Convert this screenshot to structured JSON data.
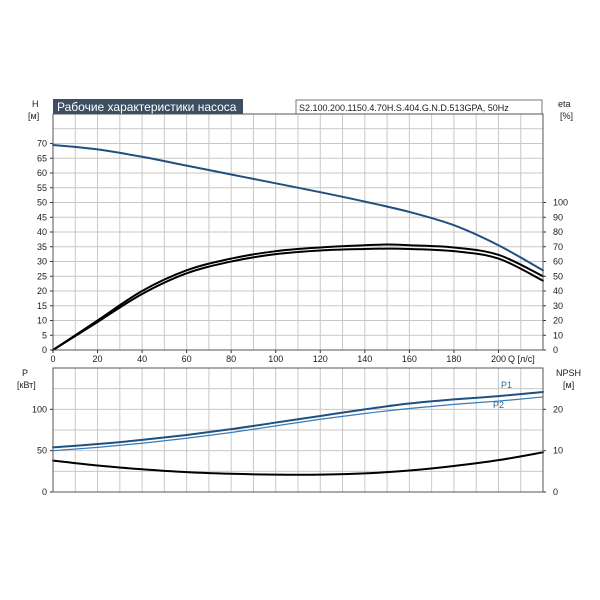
{
  "header": {
    "title": "Рабочие характеристики насоса",
    "model": "S2.100.200.1150.4.70H.S.404.G.N.D.513GPA, 50Hz"
  },
  "colors": {
    "head_curve": "#1f5080",
    "efficiency_curve": "#000000",
    "power_p1": "#1f5080",
    "power_p2": "#3a7ab5",
    "npsh_curve": "#000000",
    "title_bg": "#3d4f63",
    "grid": "#c8c8c8"
  },
  "chart_data": [
    {
      "type": "line",
      "title": "Рабочие характеристики насоса",
      "xlabel": "Q [л/с]",
      "ylabel_left": "H",
      "ylabel_left_unit": "[м]",
      "ylabel_right": "eta",
      "ylabel_right_unit": "[%]",
      "xlim": [
        0,
        220
      ],
      "ylim_left": [
        0,
        80
      ],
      "ylim_right": [
        0,
        160
      ],
      "x_ticks": [
        0,
        20,
        40,
        60,
        80,
        100,
        120,
        140,
        160,
        180,
        200
      ],
      "x_tick_labels": [
        "0",
        "20",
        "40",
        "60",
        "80",
        "100",
        "120",
        "140",
        "160",
        "180",
        "200"
      ],
      "y_left_ticks": [
        0,
        5,
        10,
        15,
        20,
        25,
        30,
        35,
        40,
        45,
        50,
        55,
        60,
        65,
        70
      ],
      "y_left_tick_labels": [
        "0",
        "5",
        "10",
        "15",
        "20",
        "25",
        "30",
        "35",
        "40",
        "45",
        "50",
        "55",
        "60",
        "65",
        "70"
      ],
      "y_right_ticks": [
        0,
        10,
        20,
        30,
        40,
        50,
        60,
        70,
        80,
        90,
        100
      ],
      "y_right_tick_labels": [
        "0",
        "10",
        "20",
        "30",
        "40",
        "50",
        "60",
        "70",
        "80",
        "90",
        "100"
      ],
      "series": [
        {
          "name": "H",
          "axis": "left",
          "x": [
            0,
            20,
            40,
            60,
            80,
            100,
            120,
            140,
            160,
            180,
            200,
            220
          ],
          "values": [
            69.5,
            68.0,
            65.5,
            62.5,
            59.5,
            56.5,
            53.5,
            50.3,
            46.8,
            42.3,
            35.5,
            27.0
          ]
        },
        {
          "name": "eta_upper",
          "axis": "right",
          "x": [
            0,
            20,
            40,
            60,
            80,
            100,
            120,
            140,
            150,
            160,
            180,
            200,
            220
          ],
          "values": [
            0,
            20,
            40,
            54,
            62,
            67,
            69.5,
            71,
            71.5,
            71,
            69.5,
            64.5,
            50
          ]
        },
        {
          "name": "eta_lower",
          "axis": "right",
          "x": [
            0,
            20,
            40,
            60,
            80,
            100,
            120,
            140,
            150,
            160,
            180,
            200,
            220
          ],
          "values": [
            0,
            19,
            38,
            52,
            60,
            65,
            67.5,
            68.5,
            68.7,
            68.5,
            67,
            62,
            47
          ]
        }
      ]
    },
    {
      "type": "line",
      "xlabel": "",
      "ylabel_left": "P",
      "ylabel_left_unit": "[кВт]",
      "ylabel_right": "NPSH",
      "ylabel_right_unit": "[м]",
      "xlim": [
        0,
        220
      ],
      "ylim_left": [
        0,
        150
      ],
      "ylim_right": [
        0,
        30
      ],
      "y_left_ticks": [
        0,
        50,
        100
      ],
      "y_left_tick_labels": [
        "0",
        "50",
        "100"
      ],
      "y_right_ticks": [
        0,
        10,
        20
      ],
      "y_right_tick_labels": [
        "0",
        "10",
        "20"
      ],
      "series": [
        {
          "name": "P1",
          "axis": "left",
          "x": [
            0,
            20,
            40,
            60,
            80,
            100,
            120,
            140,
            160,
            180,
            200,
            220
          ],
          "values": [
            54,
            58,
            63,
            69,
            76,
            84,
            92,
            100,
            107,
            112,
            116,
            121
          ]
        },
        {
          "name": "P2",
          "axis": "left",
          "x": [
            0,
            20,
            40,
            60,
            80,
            100,
            120,
            140,
            160,
            180,
            200,
            220
          ],
          "values": [
            50,
            54,
            59,
            65,
            72,
            80,
            88,
            95,
            101,
            106,
            110,
            115
          ]
        },
        {
          "name": "NPSH",
          "axis": "right",
          "x": [
            0,
            20,
            40,
            60,
            80,
            100,
            120,
            140,
            160,
            180,
            200,
            220
          ],
          "values": [
            7.6,
            6.4,
            5.5,
            4.8,
            4.4,
            4.2,
            4.2,
            4.5,
            5.2,
            6.3,
            7.7,
            9.6
          ]
        }
      ]
    }
  ]
}
